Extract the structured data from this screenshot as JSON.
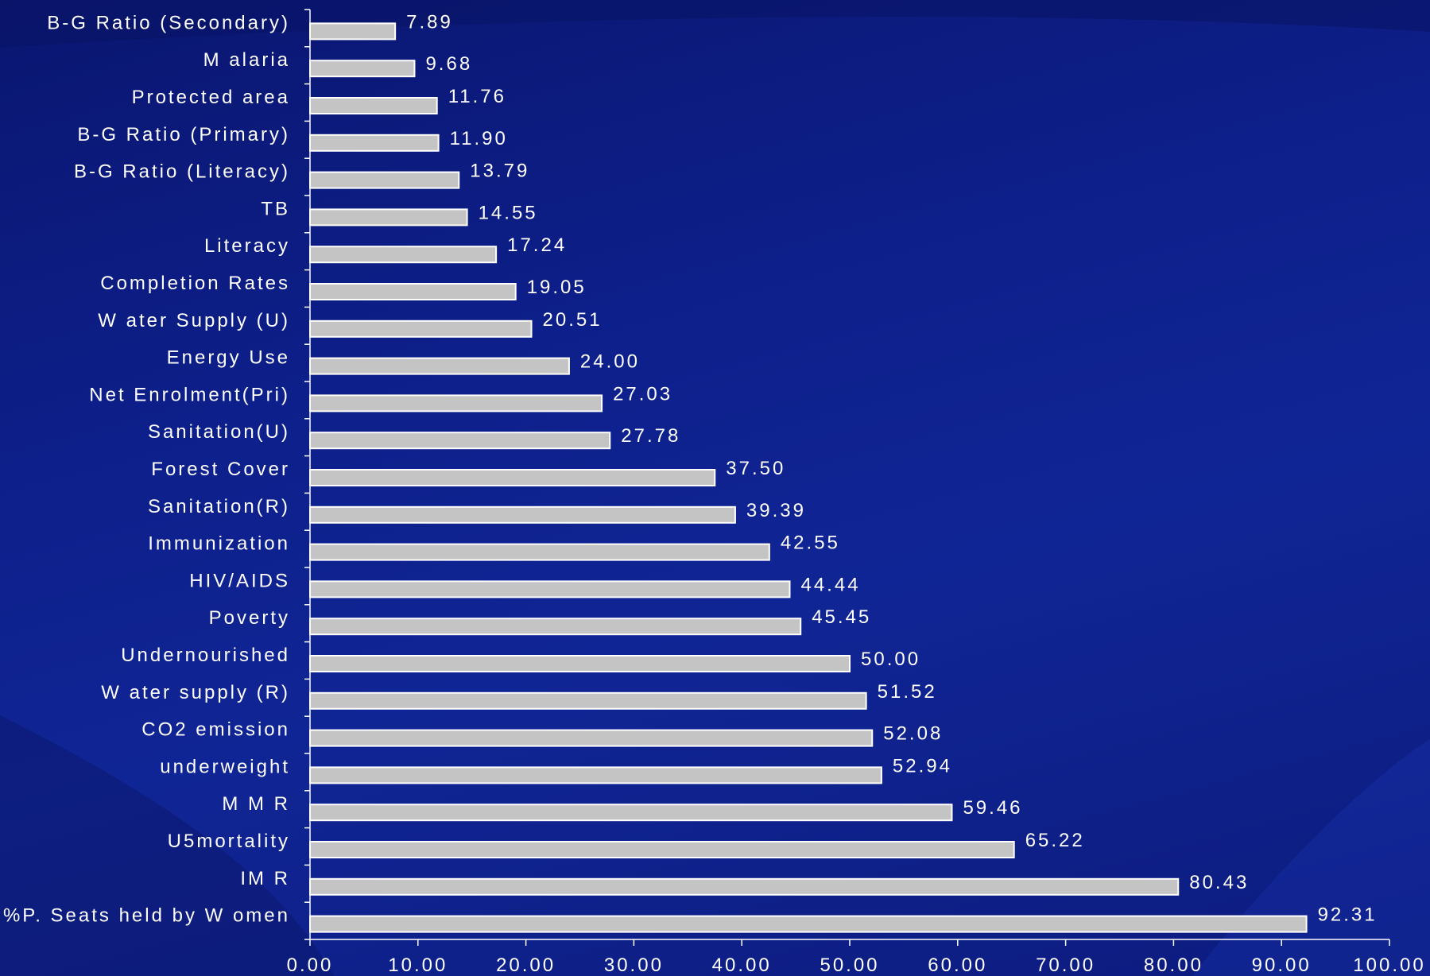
{
  "colors": {
    "background": "#0d1f8a",
    "bar_fill": "#c4c4c4",
    "bar_edge": "#ffffff",
    "text": "#ffffff",
    "axis": "#ffffff"
  },
  "chart_data": {
    "type": "bar",
    "orientation": "horizontal",
    "title": "",
    "xlabel": "",
    "ylabel": "",
    "xlim": [
      0,
      100
    ],
    "grid": false,
    "legend": "none",
    "categories": [
      "B-G Ratio (Secondary)",
      "M alaria",
      "Protected area",
      "B-G Ratio (Primary)",
      "B-G Ratio (Literacy)",
      "TB",
      "Literacy",
      "Completion Rates",
      "W ater Supply (U)",
      "Energy Use",
      "Net Enrolment(Pri)",
      "Sanitation(U)",
      "Forest Cover",
      "Sanitation(R)",
      "Immunization",
      "HIV/AIDS",
      "Poverty",
      "Undernourished",
      "W ater supply (R)",
      "CO2 emission",
      "underweight",
      "M M R",
      "U5mortality",
      "IM R",
      "%P. Seats held by W omen"
    ],
    "values": [
      7.89,
      9.68,
      11.76,
      11.9,
      13.79,
      14.55,
      17.24,
      19.05,
      20.51,
      24.0,
      27.03,
      27.78,
      37.5,
      39.39,
      42.55,
      44.44,
      45.45,
      50.0,
      51.52,
      52.08,
      52.94,
      59.46,
      65.22,
      80.43,
      92.31
    ],
    "value_labels": [
      "7.89",
      "9.68",
      "11.76",
      "11.90",
      "13.79",
      "14.55",
      "17.24",
      "19.05",
      "20.51",
      "24.00",
      "27.03",
      "27.78",
      "37.50",
      "39.39",
      "42.55",
      "44.44",
      "45.45",
      "50.00",
      "51.52",
      "52.08",
      "52.94",
      "59.46",
      "65.22",
      "80.43",
      "92.31"
    ],
    "x_ticks": [
      "0.00",
      "10.00",
      "20.00",
      "30.00",
      "40.00",
      "50.00",
      "60.00",
      "70.00",
      "80.00",
      "90.00",
      "100.00"
    ]
  }
}
